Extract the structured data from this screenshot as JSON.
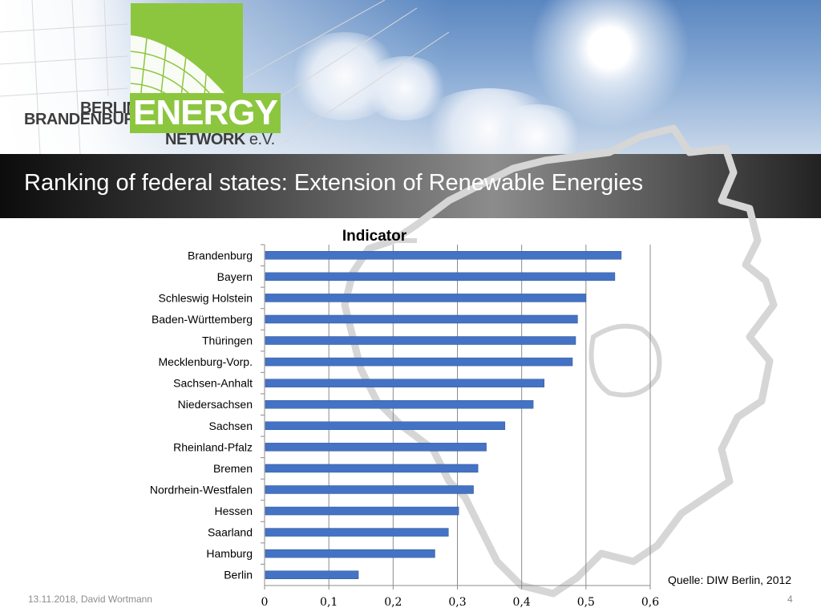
{
  "logo": {
    "line1": "BERLIN",
    "line2": "BRANDENBURG",
    "brand": "ENERGY",
    "line3": "NETWORK",
    "suffix": "e.V."
  },
  "title": "Ranking of federal states: Extension of Renewable Energies",
  "footer": {
    "date_author": "13.11.2018, David Wortmann",
    "page_number": "4"
  },
  "source": "Quelle: DIW Berlin, 2012",
  "colors": {
    "bar": "#4472c4",
    "logo_green": "#8cc63f",
    "title_text": "#ffffff"
  },
  "chart_data": {
    "type": "bar",
    "orientation": "horizontal",
    "title": "Indicator",
    "xlabel": "",
    "ylabel": "",
    "categories": [
      "Brandenburg",
      "Bayern",
      "Schleswig Holstein",
      "Baden-Württemberg",
      "Thüringen",
      "Mecklenburg-Vorp.",
      "Sachsen-Anhalt",
      "Niedersachsen",
      "Sachsen",
      "Rheinland-Pfalz",
      "Bremen",
      "Nordrhein-Westfalen",
      "Hessen",
      "Saarland",
      "Hamburg",
      "Berlin"
    ],
    "values": [
      0.555,
      0.545,
      0.5,
      0.487,
      0.484,
      0.479,
      0.435,
      0.418,
      0.374,
      0.345,
      0.332,
      0.325,
      0.302,
      0.286,
      0.265,
      0.146
    ],
    "xlim": [
      0,
      0.6
    ],
    "ticks": [
      "0",
      "0,1",
      "0,2",
      "0,3",
      "0,4",
      "0,5",
      "0,6"
    ],
    "grid": true,
    "legend": "none"
  }
}
